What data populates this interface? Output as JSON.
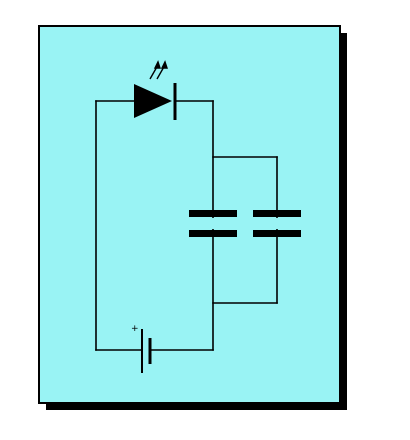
{
  "diagram": {
    "colors": {
      "panel_fill": "#99f3f4",
      "panel_border": "#000000",
      "shadow": "#000000",
      "wire": "#000000"
    },
    "components": {
      "led": {
        "icon": "led-diode-icon"
      },
      "capacitors": [
        {
          "icon": "capacitor-icon"
        },
        {
          "icon": "capacitor-icon"
        }
      ],
      "battery": {
        "icon": "battery-cell-icon",
        "polarity_mark": "+"
      }
    }
  }
}
